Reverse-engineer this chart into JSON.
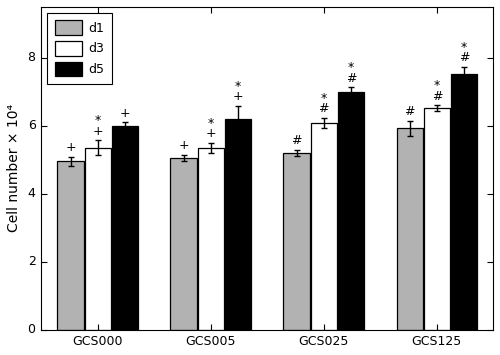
{
  "groups": [
    "GCS000",
    "GCS005",
    "GCS025",
    "GCS125"
  ],
  "days": [
    "d1",
    "d3",
    "d5"
  ],
  "bar_colors": [
    "#b2b2b2",
    "#ffffff",
    "#000000"
  ],
  "bar_edgecolor": "#000000",
  "values": [
    [
      4.95,
      5.35,
      6.0
    ],
    [
      5.05,
      5.35,
      6.2
    ],
    [
      5.2,
      6.08,
      6.98
    ],
    [
      5.92,
      6.52,
      7.52
    ]
  ],
  "errors": [
    [
      0.13,
      0.22,
      0.1
    ],
    [
      0.1,
      0.15,
      0.38
    ],
    [
      0.1,
      0.15,
      0.15
    ],
    [
      0.22,
      0.08,
      0.22
    ]
  ],
  "annot_map": {
    "0_0": [
      "+"
    ],
    "0_1": [
      "+",
      "*"
    ],
    "0_2": [
      "+"
    ],
    "1_0": [
      "+"
    ],
    "1_1": [
      "+",
      "*"
    ],
    "1_2": [
      "+",
      "*"
    ],
    "2_0": [
      "#"
    ],
    "2_1": [
      "#",
      "*"
    ],
    "2_2": [
      "#",
      "*"
    ],
    "3_0": [
      "#"
    ],
    "3_1": [
      "#",
      "*"
    ],
    "3_2": [
      "#",
      "*"
    ]
  },
  "ylabel": "Cell number × 10⁴",
  "ylim": [
    0,
    9.5
  ],
  "yticks": [
    0,
    2,
    4,
    6,
    8
  ],
  "figsize": [
    5.0,
    3.55
  ],
  "dpi": 100,
  "legend_labels": [
    "d1",
    "d3",
    "d5"
  ]
}
